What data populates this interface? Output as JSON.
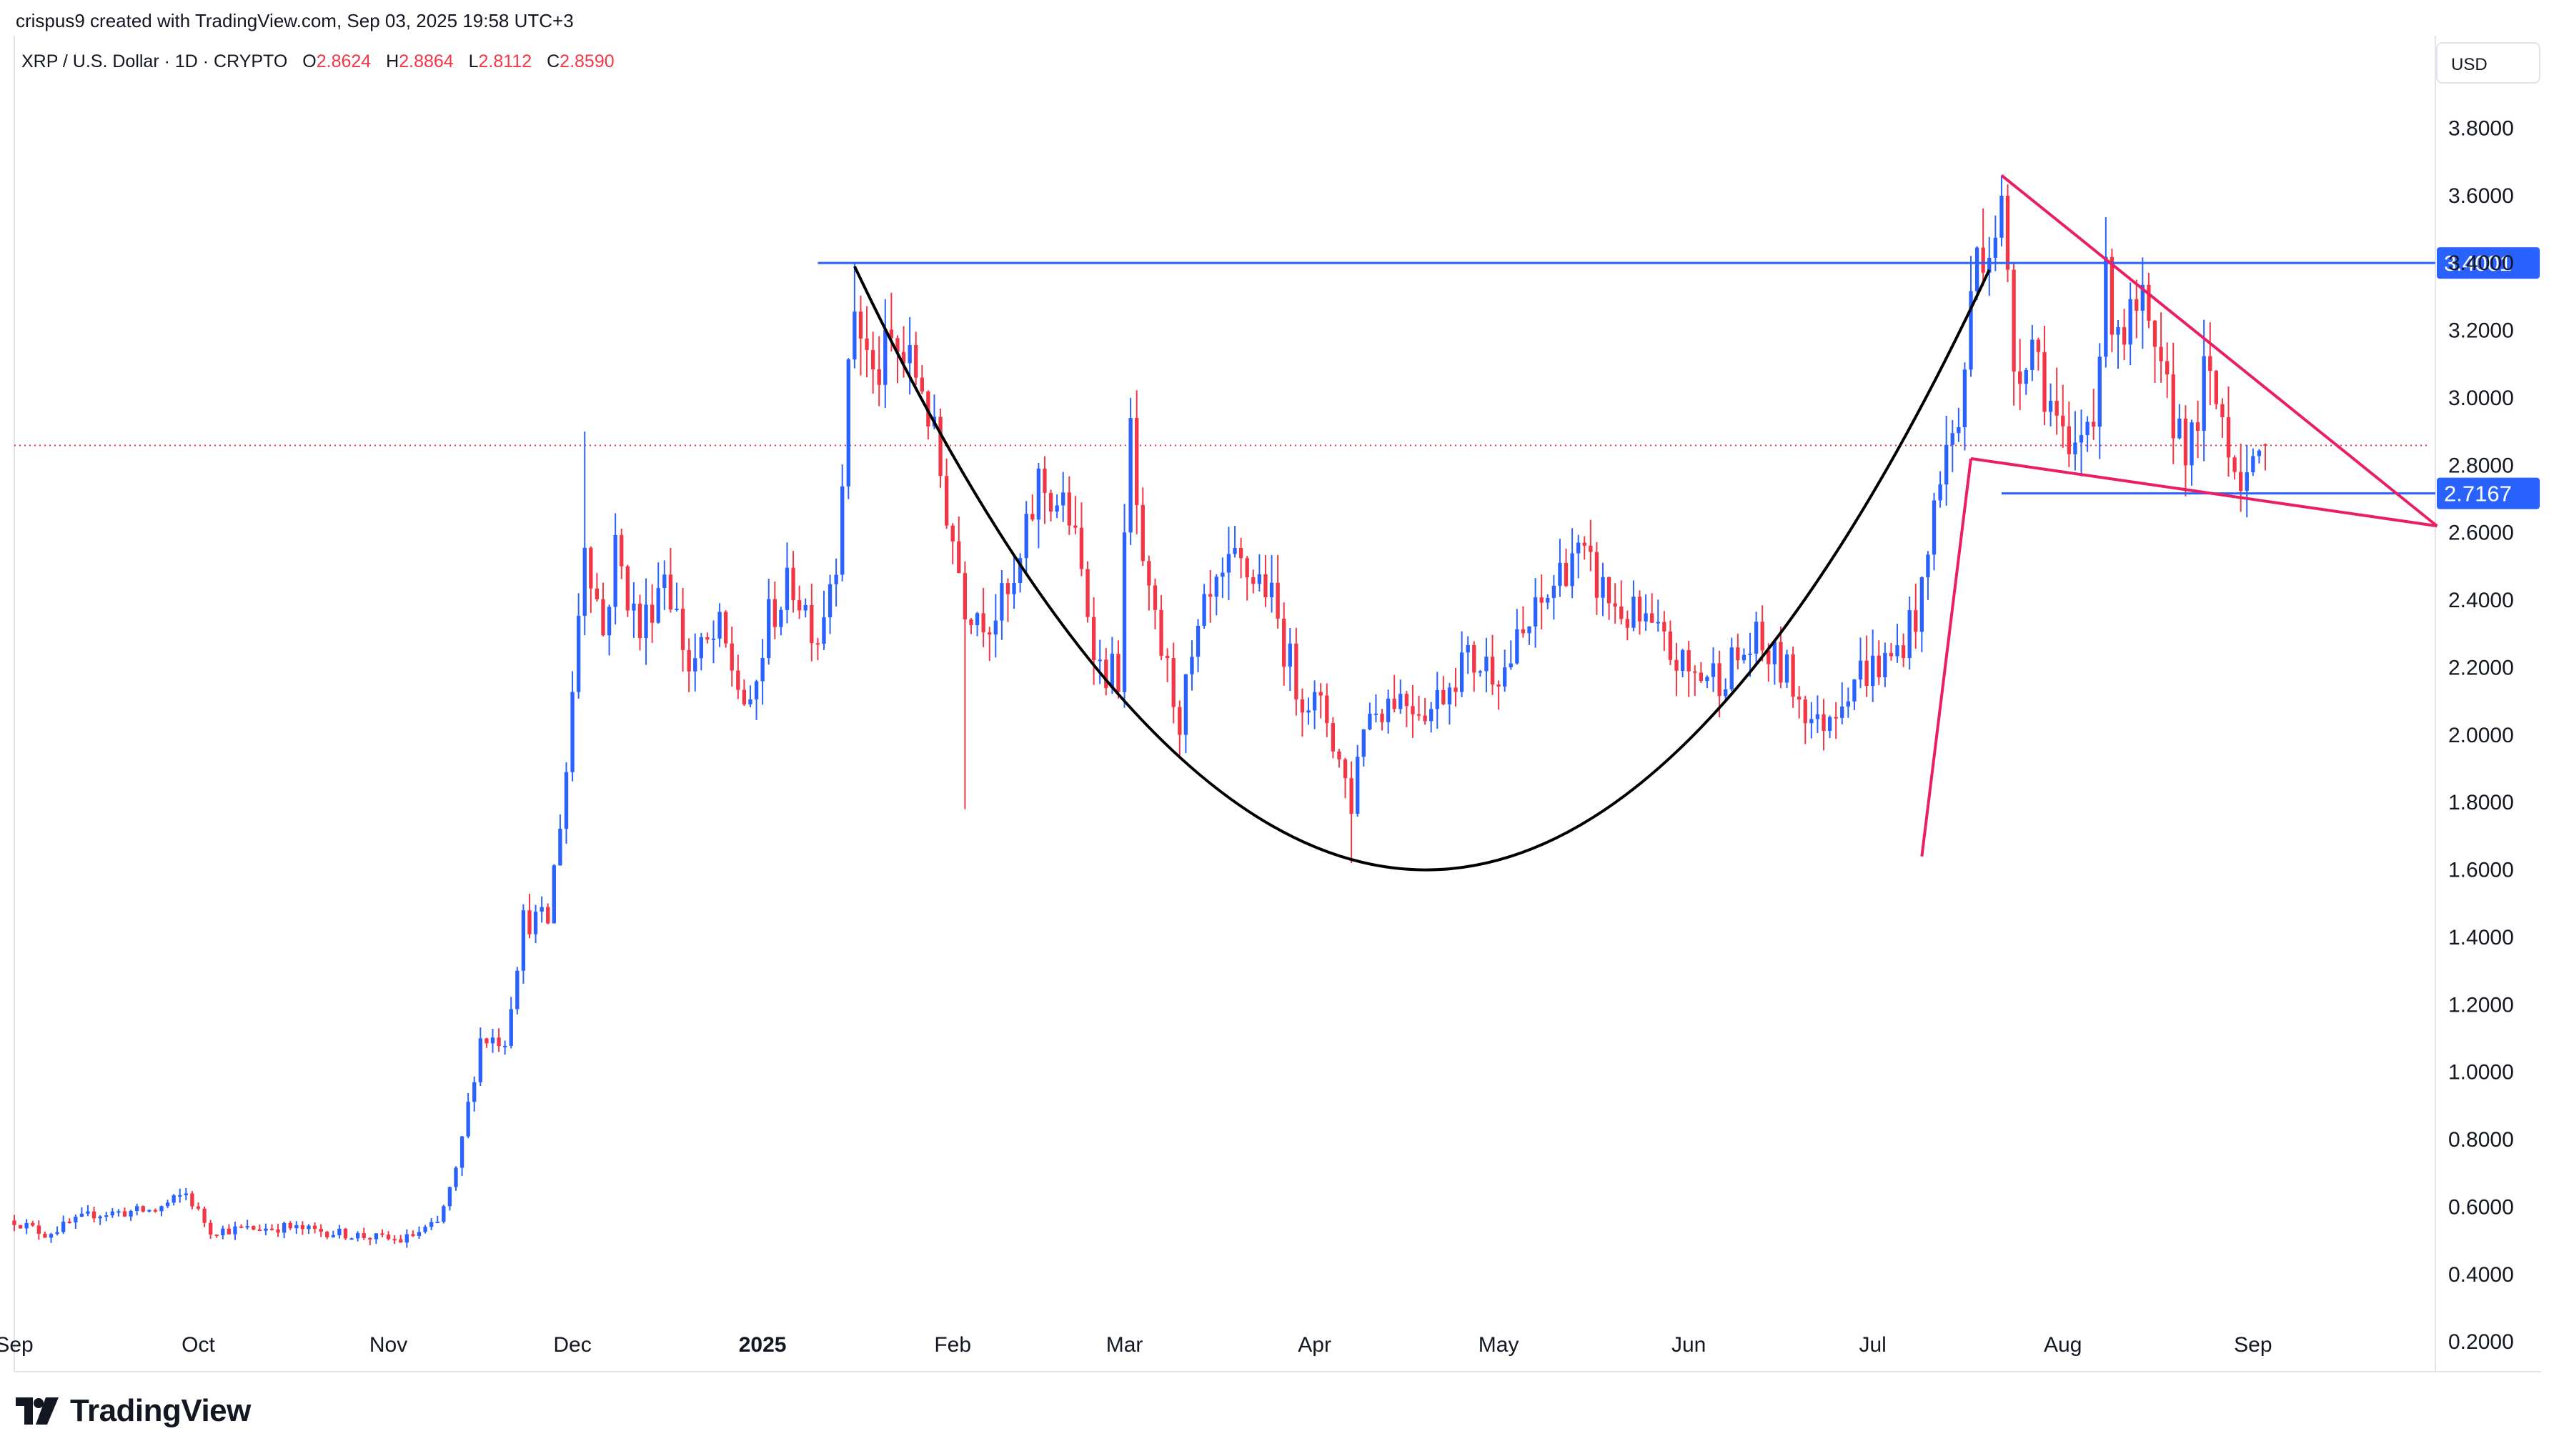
{
  "header": {
    "attribution": "crispus9 created with TradingView.com, Sep 03, 2025 19:58 UTC+3"
  },
  "legend": {
    "symbol": "XRP / U.S. Dollar · 1D · CRYPTO",
    "open_label": "O",
    "open": "2.8624",
    "high_label": "H",
    "high": "2.8864",
    "low_label": "L",
    "low": "2.8112",
    "close_label": "C",
    "close": "2.8590"
  },
  "footer": {
    "brand": "TradingView"
  },
  "colors": {
    "up": "#2962ff",
    "down": "#f23645",
    "level_line": "#2962ff",
    "pattern_line": "#e91e63",
    "cup_line": "#000000",
    "price_line": "#f23645"
  },
  "chart_data": {
    "type": "candlestick",
    "currency": "USD",
    "x_start": "2024-09-01",
    "x_end": "2025-09-03",
    "x_labels": [
      {
        "date": "2024-09-01",
        "label": "Sep",
        "bold": false
      },
      {
        "date": "2024-10-01",
        "label": "Oct",
        "bold": false
      },
      {
        "date": "2024-11-01",
        "label": "Nov",
        "bold": false
      },
      {
        "date": "2024-12-01",
        "label": "Dec",
        "bold": false
      },
      {
        "date": "2025-01-01",
        "label": "2025",
        "bold": true
      },
      {
        "date": "2025-02-01",
        "label": "Feb",
        "bold": false
      },
      {
        "date": "2025-03-01",
        "label": "Mar",
        "bold": false
      },
      {
        "date": "2025-04-01",
        "label": "Apr",
        "bold": false
      },
      {
        "date": "2025-05-01",
        "label": "May",
        "bold": false
      },
      {
        "date": "2025-06-01",
        "label": "Jun",
        "bold": false
      },
      {
        "date": "2025-07-01",
        "label": "Jul",
        "bold": false
      },
      {
        "date": "2025-08-01",
        "label": "Aug",
        "bold": false
      },
      {
        "date": "2025-09-01",
        "label": "Sep",
        "bold": false
      }
    ],
    "y_ticks": [
      "0.2000",
      "0.4000",
      "0.6000",
      "0.8000",
      "1.0000",
      "1.2000",
      "1.4000",
      "1.6000",
      "1.8000",
      "2.0000",
      "2.2000",
      "2.4000",
      "2.6000",
      "2.8000",
      "3.0000",
      "3.2000",
      "3.4000",
      "3.6000",
      "3.8000"
    ],
    "ylim": [
      0.12,
      4.07
    ],
    "levels": [
      {
        "value": 3.4001,
        "label": "3.4001",
        "from": "2025-01-10"
      },
      {
        "value": 2.7167,
        "label": "2.7167",
        "from": "2025-07-22"
      }
    ],
    "current_price": 2.859,
    "annotations": {
      "cup": {
        "left": [
          "2025-01-16",
          3.39
        ],
        "bottom": [
          "2025-04-19",
          1.6
        ],
        "right": [
          "2025-07-20",
          3.38
        ]
      },
      "flagpole": [
        [
          "2025-07-09",
          1.64
        ],
        [
          "2025-07-17",
          2.82
        ]
      ],
      "wedge_upper": [
        [
          "2025-07-22",
          3.66
        ],
        [
          "2025-10-01",
          2.62
        ]
      ],
      "wedge_lower": [
        [
          "2025-07-17",
          2.82
        ],
        [
          "2025-10-01",
          2.62
        ]
      ]
    },
    "anchors": [
      [
        "2024-09-01",
        0.56
      ],
      [
        "2024-09-06",
        0.52
      ],
      [
        "2024-09-14",
        0.58
      ],
      [
        "2024-09-24",
        0.59
      ],
      [
        "2024-09-29",
        0.64
      ],
      [
        "2024-10-03",
        0.53
      ],
      [
        "2024-10-15",
        0.54
      ],
      [
        "2024-10-25",
        0.52
      ],
      [
        "2024-11-03",
        0.5
      ],
      [
        "2024-11-09",
        0.55
      ],
      [
        "2024-11-12",
        0.7
      ],
      [
        "2024-11-16",
        1.1
      ],
      [
        "2024-11-20",
        1.1
      ],
      [
        "2024-11-23",
        1.45
      ],
      [
        "2024-11-27",
        1.45
      ],
      [
        "2024-11-30",
        1.9
      ],
      [
        "2024-12-03",
        2.6
      ],
      [
        "2024-12-06",
        2.3
      ],
      [
        "2024-12-08",
        2.55
      ],
      [
        "2024-12-12",
        2.3
      ],
      [
        "2024-12-16",
        2.5
      ],
      [
        "2024-12-20",
        2.2
      ],
      [
        "2024-12-25",
        2.3
      ],
      [
        "2024-12-30",
        2.05
      ],
      [
        "2025-01-02",
        2.35
      ],
      [
        "2025-01-06",
        2.45
      ],
      [
        "2025-01-10",
        2.3
      ],
      [
        "2025-01-13",
        2.55
      ],
      [
        "2025-01-16",
        3.28
      ],
      [
        "2025-01-19",
        3.05
      ],
      [
        "2025-01-22",
        3.15
      ],
      [
        "2025-01-27",
        3.05
      ],
      [
        "2025-02-03",
        2.4
      ],
      [
        "2025-02-07",
        2.35
      ],
      [
        "2025-02-11",
        2.42
      ],
      [
        "2025-02-15",
        2.75
      ],
      [
        "2025-02-20",
        2.65
      ],
      [
        "2025-02-25",
        2.2
      ],
      [
        "2025-02-28",
        2.18
      ],
      [
        "2025-03-02",
        2.9
      ],
      [
        "2025-03-04",
        2.45
      ],
      [
        "2025-03-10",
        2.05
      ],
      [
        "2025-03-14",
        2.35
      ],
      [
        "2025-03-19",
        2.5
      ],
      [
        "2025-03-24",
        2.45
      ],
      [
        "2025-03-29",
        2.15
      ],
      [
        "2025-04-03",
        2.05
      ],
      [
        "2025-04-07",
        1.8
      ],
      [
        "2025-04-09",
        2.05
      ],
      [
        "2025-04-14",
        2.12
      ],
      [
        "2025-04-20",
        2.08
      ],
      [
        "2025-04-25",
        2.22
      ],
      [
        "2025-05-02",
        2.2
      ],
      [
        "2025-05-08",
        2.38
      ],
      [
        "2025-05-13",
        2.55
      ],
      [
        "2025-05-20",
        2.38
      ],
      [
        "2025-05-25",
        2.32
      ],
      [
        "2025-06-01",
        2.18
      ],
      [
        "2025-06-06",
        2.18
      ],
      [
        "2025-06-12",
        2.27
      ],
      [
        "2025-06-17",
        2.18
      ],
      [
        "2025-06-22",
        2.02
      ],
      [
        "2025-06-28",
        2.18
      ],
      [
        "2025-07-04",
        2.22
      ],
      [
        "2025-07-09",
        2.4
      ],
      [
        "2025-07-12",
        2.8
      ],
      [
        "2025-07-15",
        2.92
      ],
      [
        "2025-07-18",
        3.45
      ],
      [
        "2025-07-20",
        3.48
      ],
      [
        "2025-07-22",
        3.55
      ],
      [
        "2025-07-24",
        3.1
      ],
      [
        "2025-07-27",
        3.18
      ],
      [
        "2025-07-31",
        2.92
      ],
      [
        "2025-08-02",
        2.78
      ],
      [
        "2025-08-06",
        3.0
      ],
      [
        "2025-08-08",
        3.32
      ],
      [
        "2025-08-11",
        3.2
      ],
      [
        "2025-08-14",
        3.25
      ],
      [
        "2025-08-16",
        3.08
      ],
      [
        "2025-08-19",
        2.95
      ],
      [
        "2025-08-22",
        2.85
      ],
      [
        "2025-08-24",
        3.05
      ],
      [
        "2025-08-27",
        2.95
      ],
      [
        "2025-08-29",
        2.82
      ],
      [
        "2025-09-01",
        2.75
      ],
      [
        "2025-09-03",
        2.859
      ]
    ],
    "spikes": [
      {
        "date": "2024-12-03",
        "high": 2.9
      },
      {
        "date": "2025-01-16",
        "high": 3.4
      },
      {
        "date": "2025-02-03",
        "low": 1.78
      },
      {
        "date": "2025-03-02",
        "high": 3.0
      },
      {
        "date": "2025-04-07",
        "low": 1.62
      },
      {
        "date": "2025-07-22",
        "high": 3.66
      }
    ]
  }
}
